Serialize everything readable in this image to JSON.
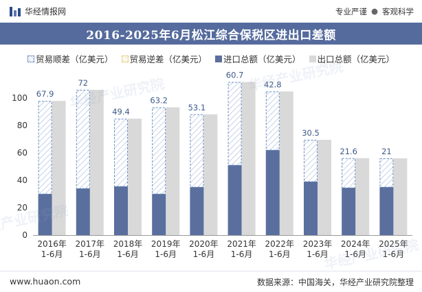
{
  "header": {
    "brand": "华经情报网",
    "tag_1": "专业严谨",
    "separator": "●",
    "tag_2": "客观科学"
  },
  "watermark": "华经产业研究院",
  "colors": {
    "title_bg": "#556b9d",
    "import": "#5a6f9e",
    "export": "#d9d9d9",
    "surplus_stroke": "#6a8cc0",
    "deficit_stroke": "#e2c97a",
    "label": "#3d5a8a"
  },
  "footer": {
    "site": "www.huaon.com",
    "source": "数据来源：中国海关，华经产业研究院整理"
  },
  "chart_data": {
    "type": "bar",
    "title": "2016-2025年6月松江综合保税区进出口差额",
    "categories": [
      [
        "2016年",
        "1-6月"
      ],
      [
        "2017年",
        "1-6月"
      ],
      [
        "2018年",
        "1-6月"
      ],
      [
        "2019年",
        "1-6月"
      ],
      [
        "2020年",
        "1-6月"
      ],
      [
        "2021年",
        "1-6月"
      ],
      [
        "2022年",
        "1-6月"
      ],
      [
        "2023年",
        "1-6月"
      ],
      [
        "2024年",
        "1-6月"
      ],
      [
        "2025年",
        "1-6月"
      ]
    ],
    "series": [
      {
        "name": "贸易顺差（亿美元）",
        "key": "surplus",
        "values": [
          67.9,
          72,
          49.4,
          63.2,
          53.1,
          60.7,
          42.8,
          30.5,
          21.6,
          21
        ]
      },
      {
        "name": "贸易逆差（亿美元）",
        "key": "deficit",
        "values": [
          0,
          0,
          0,
          0,
          0,
          0,
          0,
          0,
          0,
          0
        ]
      },
      {
        "name": "进口总额（亿美元）",
        "key": "import",
        "values": [
          30,
          34,
          35.5,
          30,
          35,
          51,
          62,
          39,
          34.5,
          35
        ]
      },
      {
        "name": "出口总额（亿美元）",
        "key": "export",
        "values": [
          97.9,
          106,
          84.9,
          93.2,
          88.1,
          111.7,
          104.8,
          69.5,
          56.1,
          56
        ]
      }
    ],
    "ylim": [
      0,
      120
    ],
    "yticks": [
      0,
      20,
      40,
      60,
      80,
      100
    ],
    "xlabel": "",
    "ylabel": "",
    "grid": false,
    "legend_position": "top-left"
  }
}
